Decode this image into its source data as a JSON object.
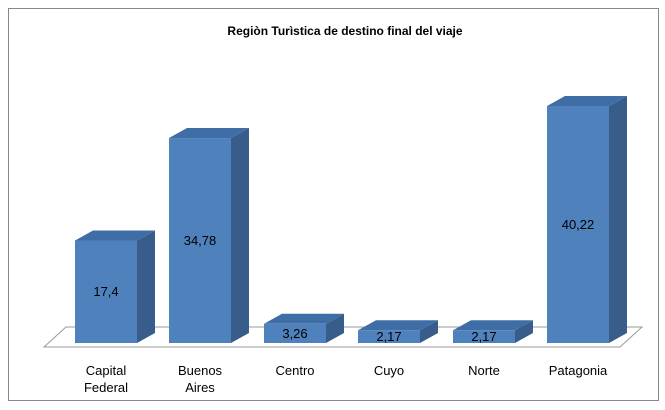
{
  "chart_data": {
    "type": "bar3d",
    "title": "Regiòn Turìstica de destino final del viaje",
    "categories": [
      "Capital Federal",
      "Buenos Aires",
      "Centro",
      "Cuyo",
      "Norte",
      "Patagonia"
    ],
    "values": [
      17.4,
      34.78,
      3.26,
      2.17,
      2.17,
      40.22
    ],
    "value_labels": [
      "17,4",
      "34,78",
      "3,26",
      "2,17",
      "2,17",
      "40,22"
    ],
    "color": "#4f81bd"
  }
}
